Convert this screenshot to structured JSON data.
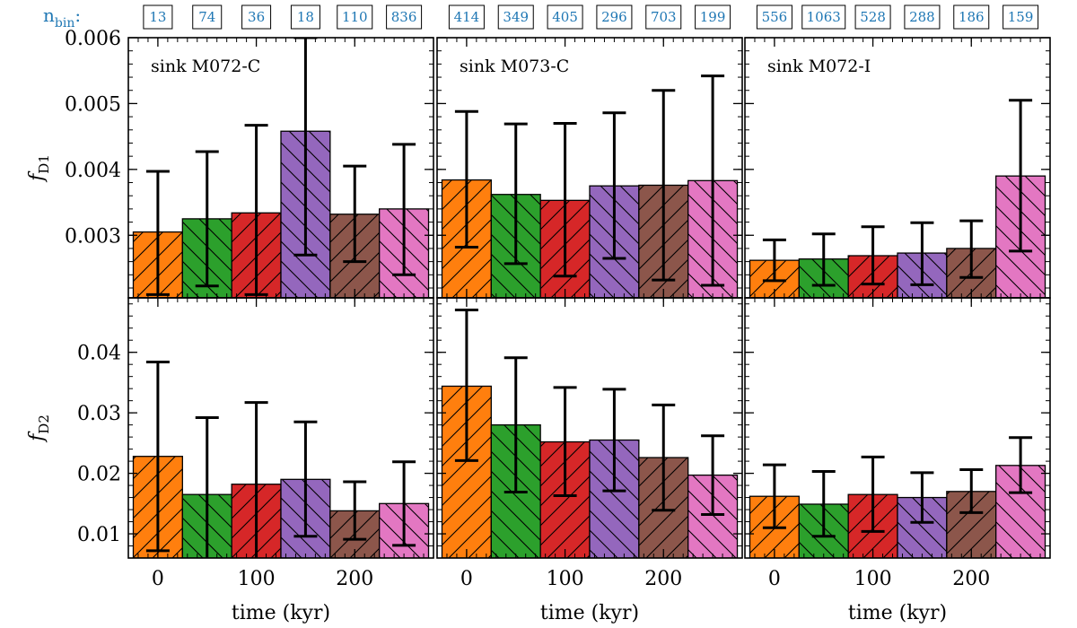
{
  "figure": {
    "nbin_label": "n",
    "nbin_label_sub": "bin",
    "nbin_label_suffix": ":"
  },
  "chart_data": {
    "type": "bar",
    "bar_centers": [
      0,
      50,
      100,
      150,
      200,
      250
    ],
    "bar_width": 50,
    "colors": [
      "#ff7f0e",
      "#2ca02c",
      "#d62728",
      "#9467bd",
      "#8c564b",
      "#e377c2"
    ],
    "hatch": [
      "/",
      "\\",
      "/",
      "\\",
      "/",
      "\\"
    ],
    "xlim": [
      -30,
      280
    ],
    "xticks": [
      0,
      100,
      200
    ],
    "xlabel": "time (kyr)",
    "rows": [
      {
        "ylabel": "f",
        "ylabel_sub": "D1",
        "ylim": [
          0.00205,
          0.006
        ],
        "yticks": [
          0.003,
          0.004,
          0.005,
          0.006
        ],
        "ytick_labels": [
          "0.003",
          "0.004",
          "0.005",
          "0.006"
        ]
      },
      {
        "ylabel": "f",
        "ylabel_sub": "D2",
        "ylim": [
          0.006,
          0.049
        ],
        "yticks": [
          0.01,
          0.02,
          0.03,
          0.04
        ],
        "ytick_labels": [
          "0.01",
          "0.02",
          "0.03",
          "0.04"
        ]
      }
    ],
    "columns": [
      {
        "label": "sink M072-C",
        "nbin": [
          "13",
          "74",
          "36",
          "18",
          "110",
          "836"
        ],
        "fD1": [
          0.00305,
          0.00325,
          0.00334,
          0.00458,
          0.00332,
          0.0034
        ],
        "fD1_err_low": [
          0.0021,
          0.00223,
          0.0021,
          0.0027,
          0.0026,
          0.0024
        ],
        "fD1_err_high": [
          0.00397,
          0.00427,
          0.00467,
          0.006,
          0.00405,
          0.00438
        ],
        "fD2": [
          0.0228,
          0.0165,
          0.0182,
          0.019,
          0.0138,
          0.015
        ],
        "fD2_err_low": [
          0.0072,
          0.0038,
          0.0048,
          0.0096,
          0.0091,
          0.0081
        ],
        "fD2_err_high": [
          0.0384,
          0.0292,
          0.0317,
          0.0285,
          0.0186,
          0.0219
        ]
      },
      {
        "label": "sink M073-C",
        "nbin": [
          "414",
          "349",
          "405",
          "296",
          "703",
          "199"
        ],
        "fD1": [
          0.00384,
          0.00362,
          0.00353,
          0.00375,
          0.00376,
          0.00383
        ],
        "fD1_err_low": [
          0.00282,
          0.00257,
          0.00238,
          0.00265,
          0.00232,
          0.00224
        ],
        "fD1_err_high": [
          0.00488,
          0.00469,
          0.0047,
          0.00486,
          0.0052,
          0.00542
        ],
        "fD2": [
          0.0344,
          0.028,
          0.0252,
          0.0255,
          0.0226,
          0.0197
        ],
        "fD2_err_low": [
          0.0221,
          0.0169,
          0.0163,
          0.0171,
          0.0139,
          0.0132
        ],
        "fD2_err_high": [
          0.047,
          0.0391,
          0.0342,
          0.0339,
          0.0313,
          0.0262
        ]
      },
      {
        "label": "sink M072-I",
        "nbin": [
          "556",
          "1063",
          "528",
          "288",
          "186",
          "159"
        ],
        "fD1": [
          0.00262,
          0.00264,
          0.00269,
          0.00273,
          0.0028,
          0.0039
        ],
        "fD1_err_low": [
          0.00231,
          0.00224,
          0.00226,
          0.00225,
          0.00236,
          0.00276
        ],
        "fD1_err_high": [
          0.00293,
          0.00302,
          0.00313,
          0.00319,
          0.00322,
          0.00505
        ],
        "fD2": [
          0.0162,
          0.0149,
          0.0165,
          0.016,
          0.017,
          0.0213
        ],
        "fD2_err_low": [
          0.011,
          0.0096,
          0.0104,
          0.0119,
          0.0135,
          0.0168
        ],
        "fD2_err_high": [
          0.0214,
          0.0203,
          0.0227,
          0.0201,
          0.0206,
          0.0259
        ]
      }
    ]
  }
}
